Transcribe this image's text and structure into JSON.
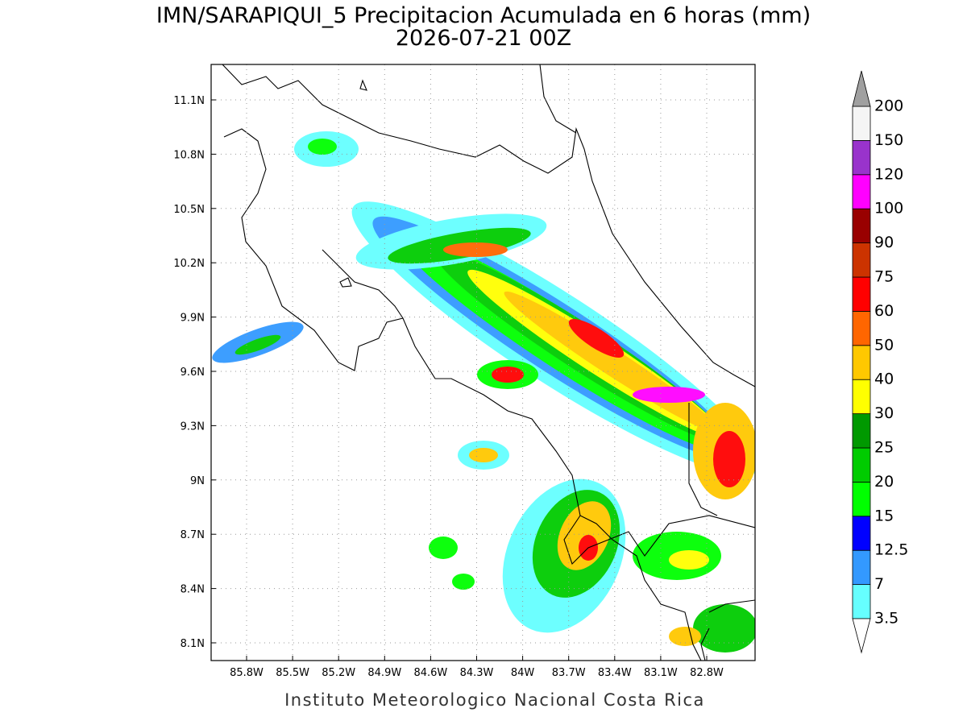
{
  "header": {
    "title": "IMN/SARAPIQUI_5 Precipitacion Acumulada en 6 horas (mm)",
    "subtitle": "2026-07-21 00Z"
  },
  "map": {
    "x_ticks": [
      "85.8W",
      "85.5W",
      "85.2W",
      "84.9W",
      "84.6W",
      "84.3W",
      "84W",
      "83.7W",
      "83.4W",
      "83.1W",
      "82.8W"
    ],
    "y_ticks": [
      "11.1N",
      "10.8N",
      "10.5N",
      "10.2N",
      "9.9N",
      "9.6N",
      "9.3N",
      "9N",
      "8.7N",
      "8.4N",
      "8.1N"
    ]
  },
  "colorbar": {
    "levels": [
      3.5,
      7,
      12.5,
      15,
      20,
      25,
      30,
      40,
      50,
      60,
      75,
      90,
      100,
      120,
      150,
      200
    ],
    "colors": [
      "#66ffff",
      "#3399ff",
      "#0000ff",
      "#00ff00",
      "#00cc00",
      "#009900",
      "#ffff00",
      "#ffc800",
      "#ff6600",
      "#ff0000",
      "#cc3300",
      "#990000",
      "#ff00ff",
      "#9933cc",
      "#f5f5f5"
    ],
    "over_color": "#a0a0a0",
    "under_color": "#ffffff"
  },
  "footer": "Instituto Meteorologico Nacional Costa Rica"
}
